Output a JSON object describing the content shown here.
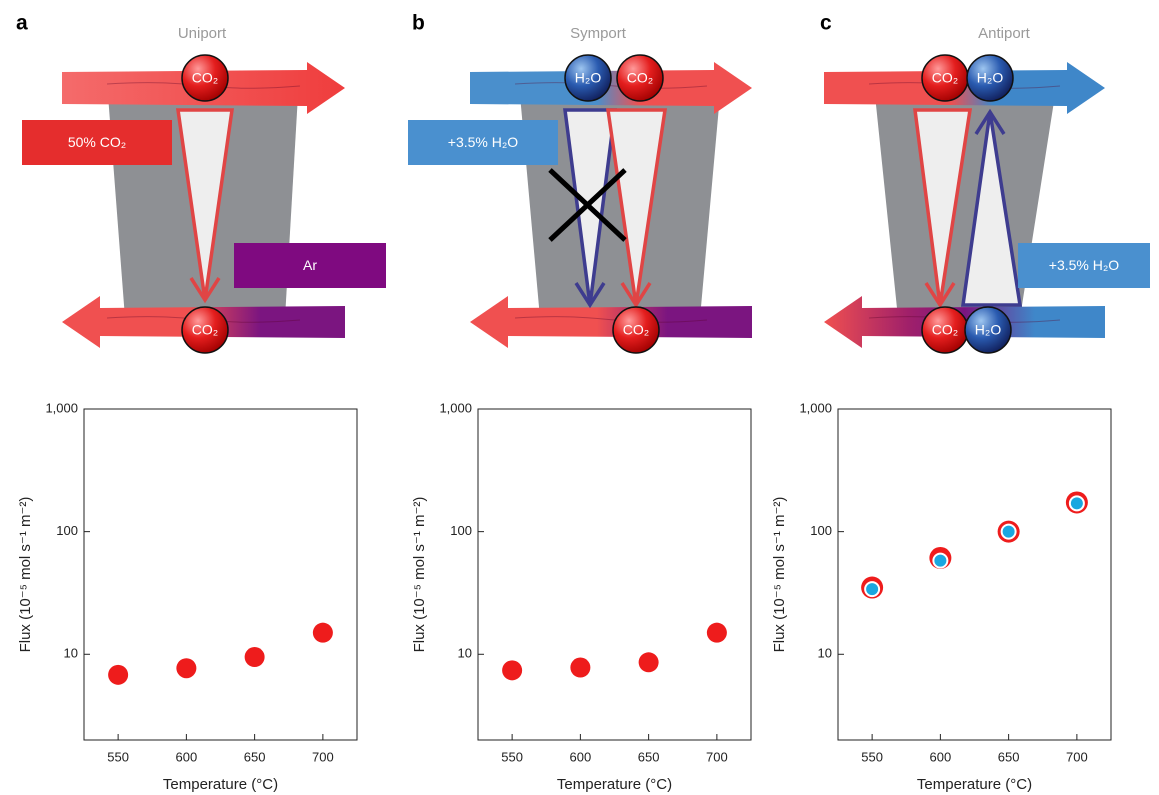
{
  "diagrams": [
    {
      "letter": "a",
      "title": "Uniport",
      "top_molecules": [
        "CO₂"
      ],
      "bottom_molecules": [
        "CO₂"
      ],
      "feed_label": "50% CO₂",
      "sweep_label": "Ar"
    },
    {
      "letter": "b",
      "title": "Symport",
      "top_molecules": [
        "H₂O",
        "CO₂"
      ],
      "bottom_molecules": [
        "CO₂"
      ],
      "feed_label": "+3.5% H₂O"
    },
    {
      "letter": "c",
      "title": "Antiport",
      "top_molecules": [
        "CO₂",
        "H₂O"
      ],
      "bottom_molecules": [
        "CO₂",
        "H₂O"
      ],
      "sweep_label": "+3.5% H₂O"
    }
  ],
  "chart_data": [
    {
      "type": "scatter",
      "x": [
        550,
        600,
        650,
        700
      ],
      "series": [
        {
          "color": "#ee1c1c",
          "values": [
            6.8,
            7.7,
            9.5,
            15
          ]
        }
      ],
      "xlabel": "Temperature (°C)",
      "ylabel": "Flux (10⁻⁵ mol s⁻¹ m⁻²)",
      "log_y": true,
      "xlim": [
        525,
        725
      ],
      "xticks": [
        550,
        600,
        650,
        700
      ],
      "ylim": [
        2,
        1000
      ],
      "yticks": [
        10,
        100,
        {
          "value": 1000,
          "label": "1,000"
        }
      ]
    },
    {
      "type": "scatter",
      "x": [
        550,
        600,
        650,
        700
      ],
      "series": [
        {
          "color": "#ee1c1c",
          "values": [
            7.4,
            7.8,
            8.6,
            15
          ]
        }
      ],
      "xlabel": "Temperature (°C)",
      "ylabel": "Flux (10⁻⁵ mol s⁻¹ m⁻²)",
      "log_y": true,
      "xlim": [
        525,
        725
      ],
      "xticks": [
        550,
        600,
        650,
        700
      ],
      "ylim": [
        2,
        1000
      ],
      "yticks": [
        10,
        100,
        {
          "value": 1000,
          "label": "1,000"
        }
      ]
    },
    {
      "type": "scatter",
      "x": [
        550,
        600,
        650,
        700
      ],
      "series": [
        {
          "color": "#ee1c1c",
          "values": [
            35,
            61,
            100,
            173
          ]
        },
        {
          "color": "#1aa7e0",
          "values": [
            34,
            58,
            100,
            170
          ]
        }
      ],
      "xlabel": "Temperature (°C)",
      "ylabel": "Flux (10⁻⁵ mol s⁻¹ m⁻²)",
      "log_y": true,
      "xlim": [
        525,
        725
      ],
      "xticks": [
        550,
        600,
        650,
        700
      ],
      "ylim": [
        2,
        1000
      ],
      "yticks": [
        10,
        100,
        {
          "value": 1000,
          "label": "1,000"
        }
      ]
    }
  ]
}
